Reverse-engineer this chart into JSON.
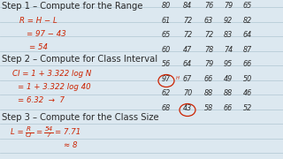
{
  "background_color": "#dce8f0",
  "line_color": "#b8ccd8",
  "black_text_color": "#2a2a2a",
  "red_text_color": "#cc2200",
  "figsize": [
    3.2,
    1.8
  ],
  "dpi": 100,
  "data_numbers": [
    [
      80,
      84,
      76,
      79,
      65
    ],
    [
      61,
      72,
      63,
      92,
      82
    ],
    [
      65,
      72,
      72,
      83,
      64
    ],
    [
      60,
      47,
      78,
      74,
      87
    ],
    [
      56,
      64,
      79,
      95,
      66
    ],
    [
      97,
      67,
      66,
      49,
      50
    ],
    [
      62,
      70,
      88,
      88,
      46
    ],
    [
      68,
      43,
      58,
      66,
      52
    ]
  ]
}
